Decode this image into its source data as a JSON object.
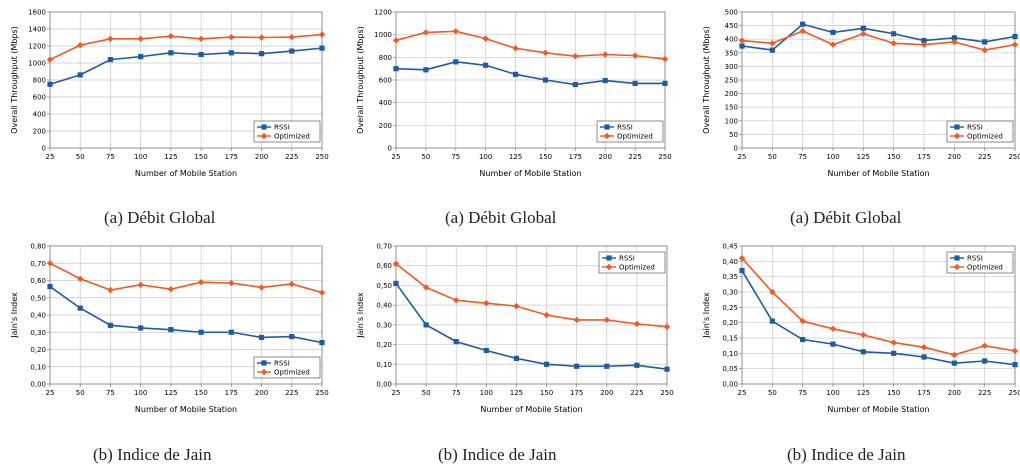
{
  "colors": {
    "rssi": "#1f5b9e",
    "optimized": "#f15a22",
    "grid": "#c8c8c8",
    "axis": "#7f7f7f"
  },
  "chart_data": [
    {
      "id": "a1",
      "type": "line",
      "caption": "(a) Débit Global",
      "xlabel": "Number of Mobile Station",
      "ylabel": "Overall Throughput (Mbps)",
      "x": [
        25,
        50,
        75,
        100,
        125,
        150,
        175,
        200,
        225,
        250
      ],
      "xticks": [
        "25",
        "50",
        "75",
        "100",
        "125",
        "150",
        "175",
        "200",
        "225",
        "250"
      ],
      "ylim": [
        0,
        1600
      ],
      "yticks": [
        "0",
        "200",
        "400",
        "600",
        "800",
        "1000",
        "1200",
        "1400",
        "1600"
      ],
      "legend_position": "bottom-right",
      "series": [
        {
          "name": "RSSI",
          "marker": "square",
          "values": [
            750,
            860,
            1040,
            1075,
            1120,
            1100,
            1120,
            1110,
            1140,
            1175
          ]
        },
        {
          "name": "Optimized",
          "marker": "diamond",
          "values": [
            1040,
            1210,
            1285,
            1285,
            1315,
            1285,
            1305,
            1300,
            1305,
            1335
          ]
        }
      ]
    },
    {
      "id": "a2",
      "type": "line",
      "caption": "(a) Débit Global",
      "xlabel": "Number of Mobile Station",
      "ylabel": "Overall Throughput (Mbps)",
      "x": [
        25,
        50,
        75,
        100,
        125,
        150,
        175,
        200,
        225,
        250
      ],
      "xticks": [
        "25",
        "50",
        "75",
        "100",
        "125",
        "150",
        "175",
        "200",
        "225",
        "250"
      ],
      "ylim": [
        0,
        1200
      ],
      "yticks": [
        "0",
        "200",
        "400",
        "600",
        "800",
        "1000",
        "1200"
      ],
      "legend_position": "bottom-right",
      "series": [
        {
          "name": "RSSI",
          "marker": "square",
          "values": [
            700,
            690,
            760,
            730,
            650,
            600,
            560,
            595,
            570,
            570
          ]
        },
        {
          "name": "Optimized",
          "marker": "diamond",
          "values": [
            950,
            1020,
            1030,
            965,
            880,
            840,
            810,
            825,
            815,
            785
          ]
        }
      ]
    },
    {
      "id": "a3",
      "type": "line",
      "caption": "(a) Débit Global",
      "xlabel": "Number of Mobile Station",
      "ylabel": "Overall Throughput (Mbps)",
      "x": [
        25,
        50,
        75,
        100,
        125,
        150,
        175,
        200,
        225,
        250
      ],
      "xticks": [
        "25",
        "50",
        "75",
        "100",
        "125",
        "150",
        "175",
        "200",
        "225",
        "250"
      ],
      "ylim": [
        0,
        500
      ],
      "yticks": [
        "0",
        "50",
        "100",
        "150",
        "200",
        "250",
        "300",
        "350",
        "400",
        "450",
        "500"
      ],
      "legend_position": "bottom-right",
      "series": [
        {
          "name": "RSSI",
          "marker": "square",
          "values": [
            375,
            360,
            455,
            425,
            440,
            420,
            395,
            405,
            390,
            410
          ]
        },
        {
          "name": "Optimized",
          "marker": "diamond",
          "values": [
            395,
            385,
            430,
            380,
            420,
            385,
            380,
            390,
            360,
            380
          ]
        }
      ]
    },
    {
      "id": "b1",
      "type": "line",
      "caption": "(b) Indice de Jain",
      "xlabel": "Number of Mobile Station",
      "ylabel": "Jain's Index",
      "x": [
        25,
        50,
        75,
        100,
        125,
        150,
        175,
        200,
        225,
        250
      ],
      "xticks": [
        "25",
        "50",
        "75",
        "100",
        "125",
        "150",
        "175",
        "200",
        "225",
        "250"
      ],
      "ylim": [
        0,
        0.8
      ],
      "yticks": [
        "0,00",
        "0,10",
        "0,20",
        "0,30",
        "0,40",
        "0,50",
        "0,60",
        "0,70",
        "0,80"
      ],
      "legend_position": "bottom-right",
      "series": [
        {
          "name": "RSSI",
          "marker": "square",
          "values": [
            0.565,
            0.44,
            0.34,
            0.325,
            0.315,
            0.3,
            0.3,
            0.27,
            0.275,
            0.24
          ]
        },
        {
          "name": "Optimized",
          "marker": "diamond",
          "values": [
            0.7,
            0.61,
            0.545,
            0.575,
            0.55,
            0.59,
            0.585,
            0.56,
            0.58,
            0.53
          ]
        }
      ]
    },
    {
      "id": "b2",
      "type": "line",
      "caption": "(b) Indice de Jain",
      "xlabel": "Number of Mobile Station",
      "ylabel": "Jain's Index",
      "x": [
        25,
        50,
        75,
        100,
        125,
        150,
        175,
        200,
        225,
        250
      ],
      "xticks": [
        "25",
        "50",
        "75",
        "100",
        "125",
        "150",
        "175",
        "200",
        "225",
        "250"
      ],
      "ylim": [
        0,
        0.7
      ],
      "yticks": [
        "0,00",
        "0,10",
        "0,20",
        "0,30",
        "0,40",
        "0,50",
        "0,60",
        "0,70"
      ],
      "legend_position": "top-right",
      "series": [
        {
          "name": "RSSI",
          "marker": "square",
          "values": [
            0.51,
            0.3,
            0.215,
            0.17,
            0.13,
            0.1,
            0.09,
            0.09,
            0.095,
            0.075
          ]
        },
        {
          "name": "Optimized",
          "marker": "diamond",
          "values": [
            0.61,
            0.49,
            0.425,
            0.41,
            0.395,
            0.35,
            0.325,
            0.325,
            0.305,
            0.29
          ]
        }
      ]
    },
    {
      "id": "b3",
      "type": "line",
      "caption": "(b) Indice de Jain",
      "xlabel": "Number of Mobile Station",
      "ylabel": "Jain's Index",
      "x": [
        25,
        50,
        75,
        100,
        125,
        150,
        175,
        200,
        225,
        250
      ],
      "xticks": [
        "25",
        "50",
        "75",
        "100",
        "125",
        "150",
        "175",
        "200",
        "225",
        "250"
      ],
      "ylim": [
        0,
        0.45
      ],
      "yticks": [
        "0,00",
        "0,05",
        "0,10",
        "0,15",
        "0,20",
        "0,25",
        "0,30",
        "0,35",
        "0,40",
        "0,45"
      ],
      "legend_position": "top-right",
      "series": [
        {
          "name": "RSSI",
          "marker": "square",
          "values": [
            0.37,
            0.205,
            0.145,
            0.13,
            0.105,
            0.1,
            0.088,
            0.068,
            0.075,
            0.063
          ]
        },
        {
          "name": "Optimized",
          "marker": "diamond",
          "values": [
            0.41,
            0.3,
            0.205,
            0.18,
            0.16,
            0.135,
            0.12,
            0.095,
            0.125,
            0.108
          ]
        }
      ]
    }
  ]
}
